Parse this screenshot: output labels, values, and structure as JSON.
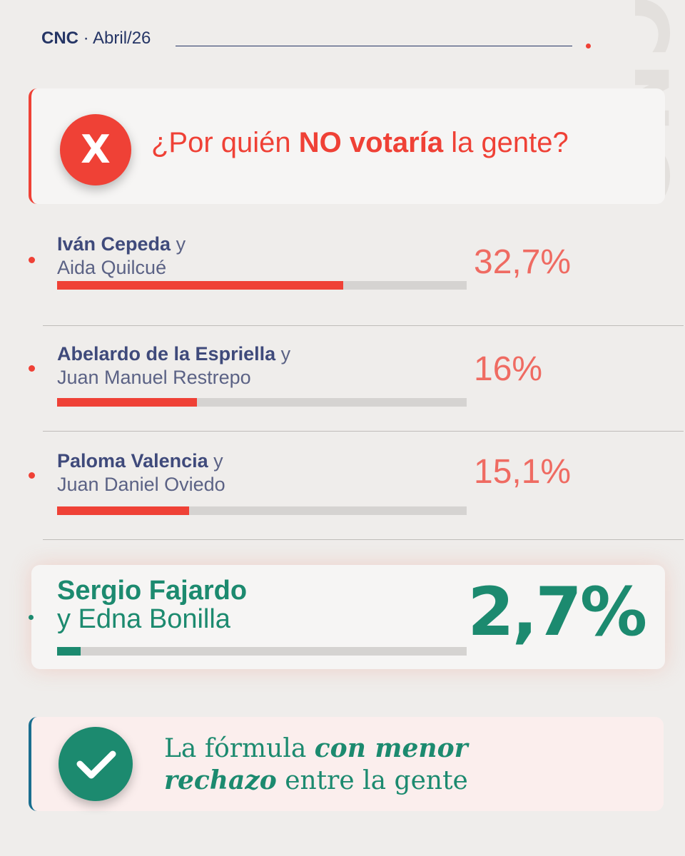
{
  "header": {
    "brand": "CNC",
    "separator": " · ",
    "date": "Abril/26"
  },
  "watermark": "CNC",
  "question": {
    "pre": "¿Por quién ",
    "bold": "NO votaría",
    "post": " la gente?",
    "icon": "x-icon"
  },
  "chart_data": {
    "type": "bar",
    "categories": [
      "Iván Cepeda y Aida Quilcué",
      "Abelardo de la Espriella y Juan Manuel Restrepo",
      "Paloma Valencia y Juan Daniel Oviedo",
      "Sergio Fajardo y Edna Bonilla"
    ],
    "values": [
      32.7,
      16,
      15.1,
      2.7
    ],
    "value_labels": [
      "32,7%",
      "16%",
      "15,1%",
      "2,7%"
    ],
    "xlim": [
      0,
      46.8
    ],
    "colors": [
      "#ef4136",
      "#ef4136",
      "#ef4136",
      "#1c8a6f"
    ],
    "title": "¿Por quién NO votaría la gente?"
  },
  "rows": [
    {
      "name1": "Iván Cepeda",
      "joiner": " y",
      "name2": "Aida Quilcué",
      "pct": "32,7%"
    },
    {
      "name1": "Abelardo de la Espriella",
      "joiner": " y",
      "name2": "Juan Manuel Restrepo",
      "pct": "16%"
    },
    {
      "name1": "Paloma Valencia",
      "joiner": " y",
      "name2": "Juan Daniel Oviedo",
      "pct": "15,1%"
    }
  ],
  "highlight": {
    "name1": "Sergio Fajardo",
    "name2": "y Edna Bonilla",
    "pct": "2,7%"
  },
  "footer": {
    "line1_pre": "La fórmula ",
    "line1_bold": "con menor",
    "line2_bold": "rechazo",
    "line2_post": " entre la gente",
    "icon": "check-icon"
  }
}
